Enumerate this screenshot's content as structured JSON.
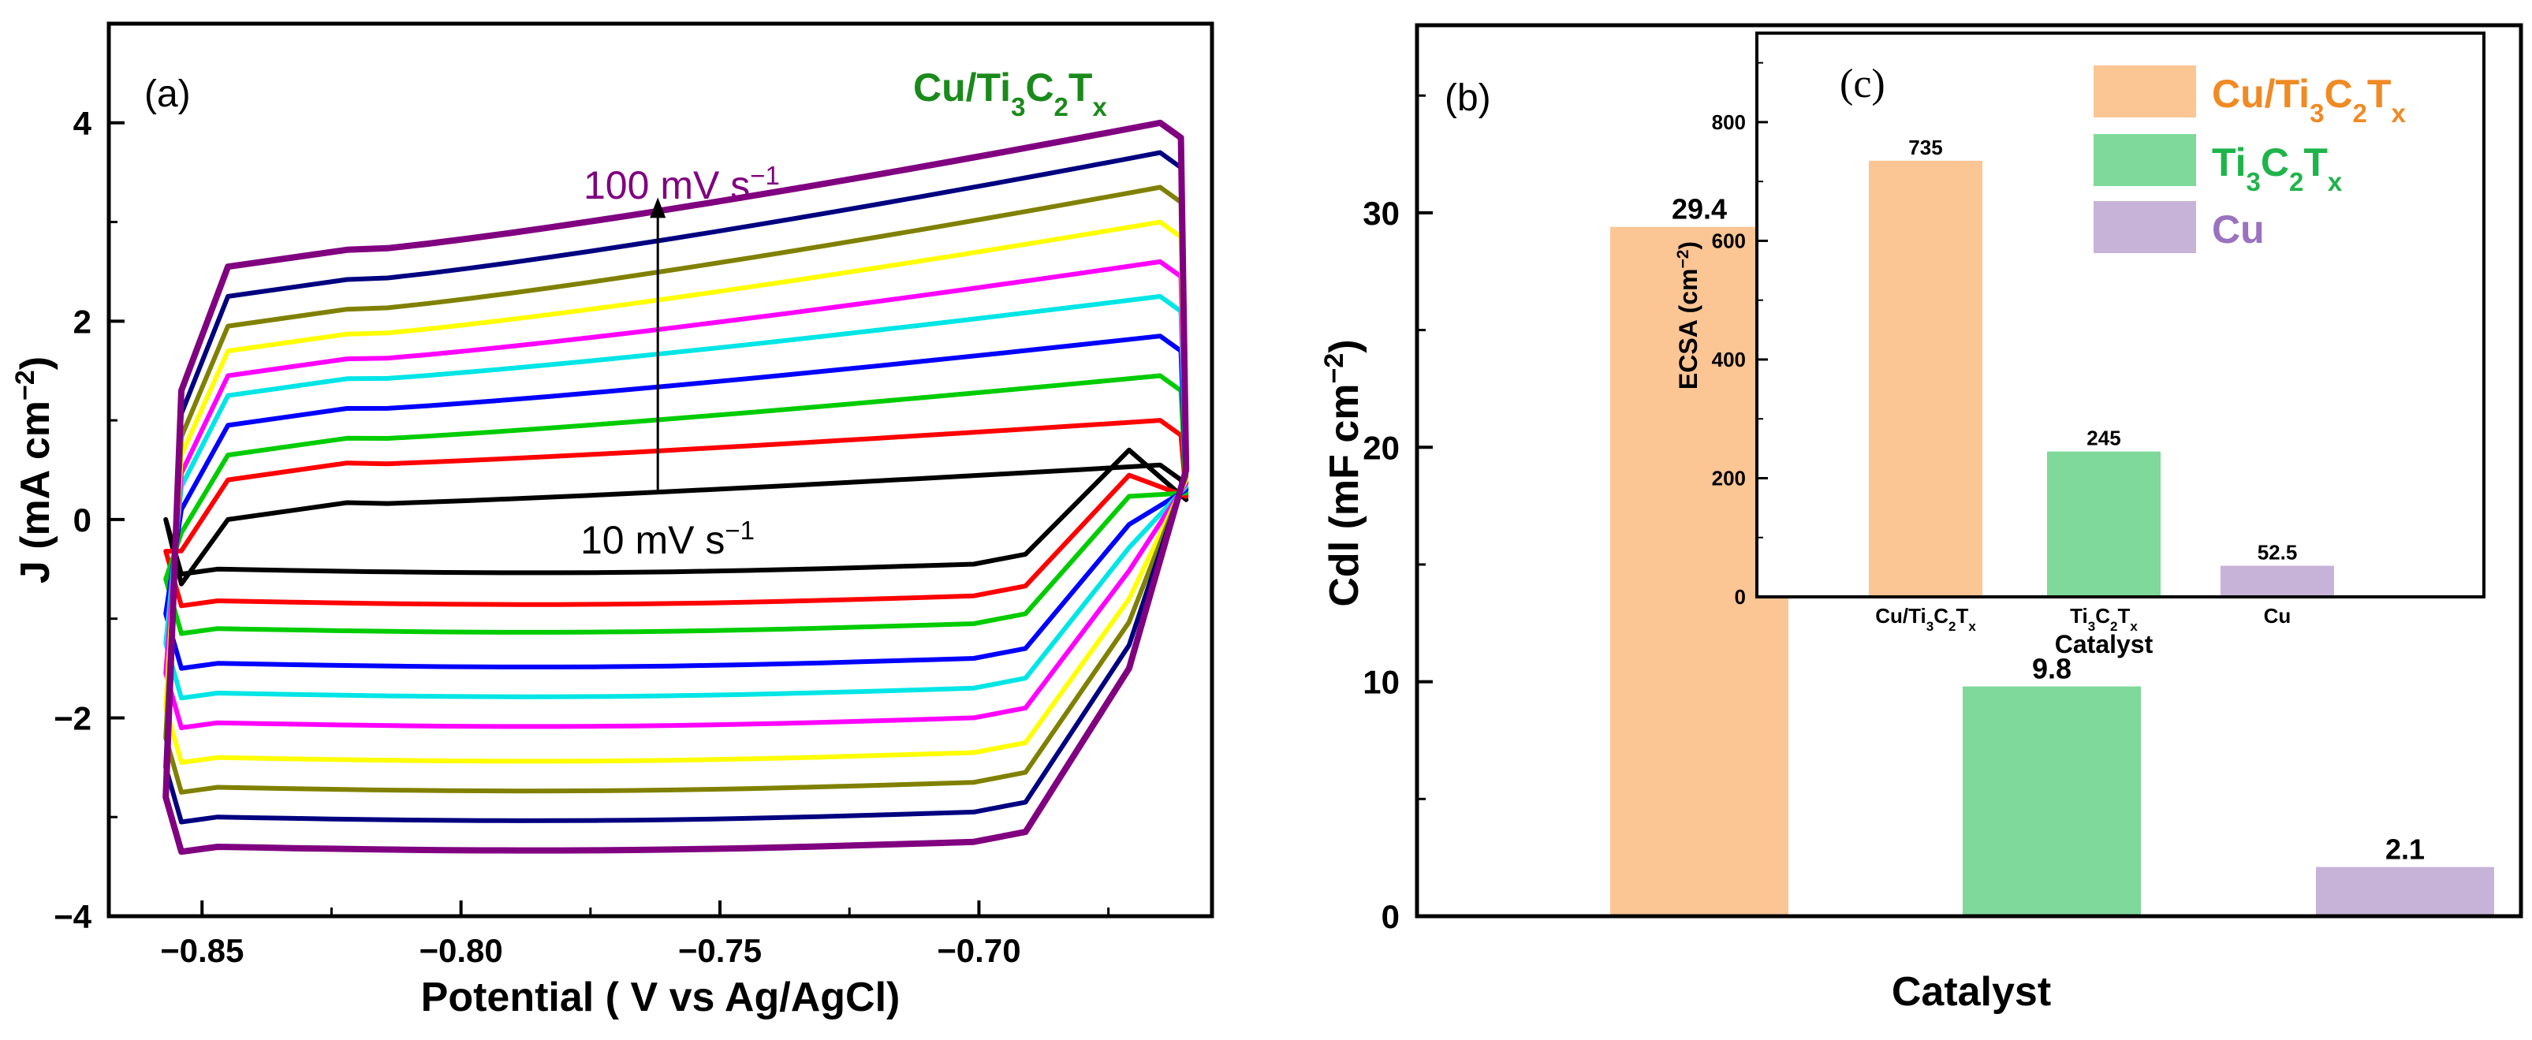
{
  "chart_data": [
    {
      "panel": "(a)",
      "type": "line",
      "title": "Cu/Ti3C2Tx",
      "title_parts": [
        [
          "Cu/Ti",
          ""
        ],
        [
          "3",
          "sub"
        ],
        [
          "C",
          ""
        ],
        [
          "2",
          "sub"
        ],
        [
          "T",
          ""
        ],
        [
          "x",
          "sub"
        ]
      ],
      "title_color": "#1a8a1a",
      "xlabel": "Potential ( V vs Ag/AgCl)",
      "ylabel_parts": [
        [
          "J (mA cm",
          ""
        ],
        [
          "−2",
          "sup"
        ],
        [
          ")",
          ""
        ]
      ],
      "xlim": [
        -0.868,
        -0.655
      ],
      "ylim": [
        -4,
        5
      ],
      "xticks": [
        -0.85,
        -0.8,
        -0.75,
        -0.7
      ],
      "xtick_labels": [
        "−0.85",
        "−0.80",
        "−0.75",
        "−0.70"
      ],
      "yticks": [
        -4,
        -2,
        0,
        2,
        4
      ],
      "ytick_labels": [
        "−4",
        "−2",
        "0",
        "2",
        "4"
      ],
      "cv": {
        "x_left": -0.857,
        "x_right": -0.661,
        "scan_rates": [
          10,
          20,
          30,
          40,
          50,
          60,
          70,
          80,
          90,
          100
        ],
        "colors": [
          "#000000",
          "#ff0000",
          "#00cc00",
          "#0000ff",
          "#00e5e5",
          "#ff00ff",
          "#ffff00",
          "#808000",
          "#000080",
          "#800080"
        ],
        "anodic_top_left": [
          0.15,
          0.55,
          0.8,
          1.1,
          1.4,
          1.6,
          1.85,
          2.1,
          2.4,
          2.7
        ],
        "anodic_top_right": [
          0.55,
          1.0,
          1.45,
          1.85,
          2.25,
          2.6,
          3.0,
          3.35,
          3.7,
          4.0
        ],
        "cathodic_bottom": [
          -0.5,
          -0.82,
          -1.1,
          -1.45,
          -1.75,
          -2.05,
          -2.4,
          -2.7,
          -3.0,
          -3.3
        ]
      },
      "annotations": {
        "high_label_parts": [
          [
            "100 mV s",
            ""
          ],
          [
            "−1",
            "sup"
          ]
        ],
        "low_label_parts": [
          [
            "10 mV s",
            ""
          ],
          [
            "−1",
            "sup"
          ]
        ],
        "arrow_x": -0.762,
        "arrow_y_from": 0.3,
        "arrow_y_to": 3.2
      }
    },
    {
      "panel": "(b)",
      "type": "bar",
      "xlabel": "Catalyst",
      "ylabel_parts": [
        [
          "Cdl (mF cm",
          ""
        ],
        [
          "−2",
          "sup"
        ],
        [
          ")",
          ""
        ]
      ],
      "categories": [
        "Cu/Ti3C2Tx",
        "Ti3C2Tx",
        "Cu"
      ],
      "values": [
        29.4,
        9.8,
        2.1
      ],
      "value_labels": [
        "29.4",
        "9.8",
        "2.1"
      ],
      "colors": [
        "#fcc594",
        "#7fd99a",
        "#c8b3d8"
      ],
      "ylim": [
        0,
        38
      ],
      "yticks": [
        0,
        10,
        20,
        30
      ],
      "ytick_labels": [
        "0",
        "10",
        "20",
        "30"
      ]
    },
    {
      "panel": "(c)",
      "type": "bar",
      "xlabel": "Catalyst",
      "ylabel_parts": [
        [
          "ECSA (cm",
          ""
        ],
        [
          "−2",
          "sup"
        ],
        [
          ")",
          ""
        ]
      ],
      "categories": [
        "Cu/Ti3C2Tx",
        "Ti3C2Tx",
        "Cu"
      ],
      "category_parts": [
        [
          [
            "Cu/Ti",
            ""
          ],
          [
            "3",
            "sub"
          ],
          [
            "C",
            ""
          ],
          [
            "2",
            "sub"
          ],
          [
            "T",
            ""
          ],
          [
            "x",
            "sub"
          ]
        ],
        [
          [
            "Ti",
            ""
          ],
          [
            "3",
            "sub"
          ],
          [
            "C",
            ""
          ],
          [
            "2",
            "sub"
          ],
          [
            "T",
            ""
          ],
          [
            "x",
            "sub"
          ]
        ],
        [
          [
            "Cu",
            ""
          ]
        ]
      ],
      "values": [
        735,
        245,
        52.5
      ],
      "value_labels": [
        "735",
        "245",
        "52.5"
      ],
      "colors": [
        "#fcc594",
        "#7fd99a",
        "#c8b3d8"
      ],
      "ylim": [
        0,
        950
      ],
      "yticks": [
        0,
        200,
        400,
        600,
        800
      ],
      "ytick_labels": [
        "0",
        "200",
        "400",
        "600",
        "800"
      ],
      "legend": [
        {
          "label": "Cu/Ti3C2Tx",
          "parts": [
            [
              "Cu/Ti",
              ""
            ],
            [
              "3",
              "sub"
            ],
            [
              "C",
              ""
            ],
            [
              "2",
              "sub"
            ],
            [
              "T",
              ""
            ],
            [
              "x",
              "sub"
            ]
          ],
          "color": "#fcc594",
          "text_color": "#f08a24"
        },
        {
          "label": "Ti3C2Tx",
          "parts": [
            [
              "Ti",
              ""
            ],
            [
              "3",
              "sub"
            ],
            [
              "C",
              ""
            ],
            [
              "2",
              "sub"
            ],
            [
              "T",
              ""
            ],
            [
              "x",
              "sub"
            ]
          ],
          "color": "#7fd99a",
          "text_color": "#1fb44a"
        },
        {
          "label": "Cu",
          "parts": [
            [
              "Cu",
              ""
            ]
          ],
          "color": "#c8b3d8",
          "text_color": "#9a72bf"
        }
      ],
      "legend_position": "top-right"
    }
  ]
}
